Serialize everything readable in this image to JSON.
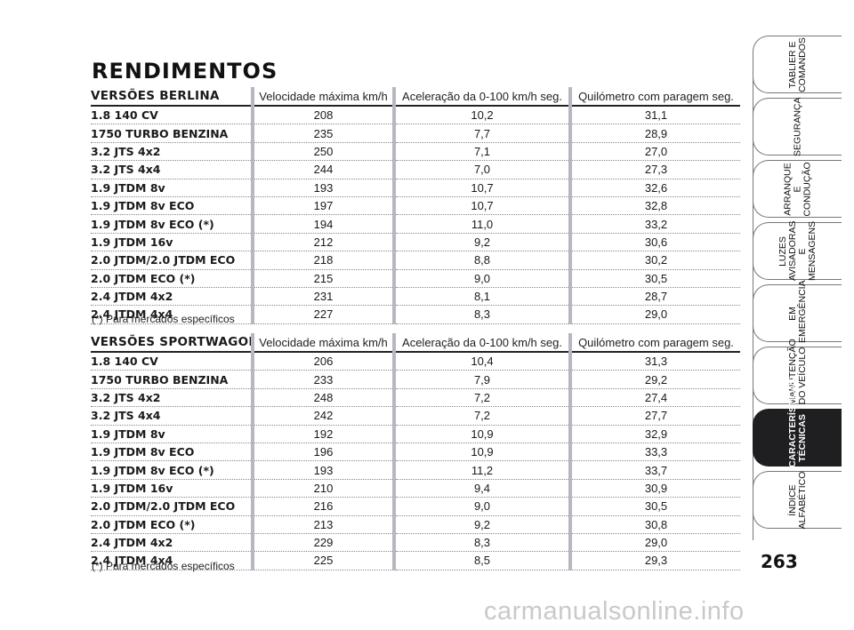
{
  "title": "RENDIMENTOS",
  "berlina": {
    "header": [
      "VERSÕES BERLINA",
      "Velocidade máxima km/h",
      "Aceleração da 0-100 km/h seg.",
      "Quilómetro com paragem seg."
    ],
    "rows": [
      [
        "1.8 140 CV",
        "208",
        "10,2",
        "31,1"
      ],
      [
        "1750 TURBO BENZINA",
        "235",
        "7,7",
        "28,9"
      ],
      [
        "3.2 JTS 4x2",
        "250",
        "7,1",
        "27,0"
      ],
      [
        "3.2 JTS 4x4",
        "244",
        "7,0",
        "27,3"
      ],
      [
        "1.9 JTDM 8v",
        "193",
        "10,7",
        "32,6"
      ],
      [
        "1.9 JTDM 8v ECO",
        "197",
        "10,7",
        "32,8"
      ],
      [
        "1.9 JTDM 8v ECO (*)",
        "194",
        "11,0",
        "33,2"
      ],
      [
        "1.9 JTDM 16v",
        "212",
        "9,2",
        "30,6"
      ],
      [
        "2.0 JTDM/2.0 JTDM ECO",
        "218",
        "8,8",
        "30,2"
      ],
      [
        "2.0 JTDM ECO (*)",
        "215",
        "9,0",
        "30,5"
      ],
      [
        "2.4 JTDM 4x2",
        "231",
        "8,1",
        "28,7"
      ],
      [
        "2.4 JTDM 4x4",
        "227",
        "8,3",
        "29,0"
      ]
    ],
    "footnote": "(*) Para mercados específicos"
  },
  "sportwagon": {
    "header": [
      "VERSÕES SPORTWAGON",
      "Velocidade máxima km/h",
      "Aceleração da 0-100 km/h seg.",
      "Quilómetro com paragem seg."
    ],
    "rows": [
      [
        "1.8 140 CV",
        "206",
        "10,4",
        "31,3"
      ],
      [
        "1750 TURBO BENZINA",
        "233",
        "7,9",
        "29,2"
      ],
      [
        "3.2 JTS 4x2",
        "248",
        "7,2",
        "27,4"
      ],
      [
        "3.2 JTS 4x4",
        "242",
        "7,2",
        "27,7"
      ],
      [
        "1.9 JTDM 8v",
        "192",
        "10,9",
        "32,9"
      ],
      [
        "1.9 JTDM 8v ECO",
        "196",
        "10,9",
        "33,3"
      ],
      [
        "1.9 JTDM 8v ECO (*)",
        "193",
        "11,2",
        "33,7"
      ],
      [
        "1.9 JTDM 16v",
        "210",
        "9,4",
        "30,9"
      ],
      [
        "2.0 JTDM/2.0 JTDM ECO",
        "216",
        "9,0",
        "30,5"
      ],
      [
        "2.0 JTDM ECO (*)",
        "213",
        "9,2",
        "30,8"
      ],
      [
        "2.4 JTDM 4x2",
        "229",
        "8,3",
        "29,0"
      ],
      [
        "2.4 JTDM 4x4",
        "225",
        "8,5",
        "29,3"
      ]
    ],
    "footnote": "(*) Para mercados específicos"
  },
  "nav_tabs": [
    {
      "label": "TABLIER E\nCOMANDOS",
      "active": false
    },
    {
      "label": "SEGURANÇA",
      "active": false
    },
    {
      "label": "ARRANQUE\nE CONDUÇÃO",
      "active": false
    },
    {
      "label": "LUZES\nAVISADORAS\nE MENSAGENS",
      "active": false
    },
    {
      "label": "EM EMERGÊNCIA",
      "active": false
    },
    {
      "label": "MANUTENÇÃO\nDO VEÍCULO",
      "active": false
    },
    {
      "label": "CARACTERÍSTICAS\nTÉCNICAS",
      "active": true
    },
    {
      "label": "ÍNDICE\nALFABÉTICO",
      "active": false
    }
  ],
  "page_number": "263",
  "watermark": "carmanualsonline.info",
  "colors": {
    "active_tab": "#1f1f22",
    "column_bar": "#b7b7c2",
    "watermark": "#c9c9c9"
  }
}
